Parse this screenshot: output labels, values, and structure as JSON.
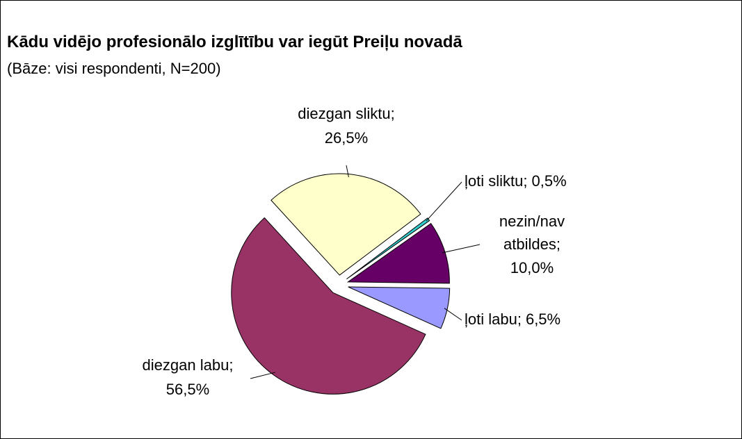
{
  "chart_data": {
    "type": "pie",
    "title": "Kādu vidējo profesionālo izglītību var iegūt Preiļu novadā",
    "subtitle": "(Bāze: visi respondenti, N=200)",
    "categories": [
      "ļoti sliktu;",
      "nezin/nav atbildes;",
      "ļoti labu;",
      "diezgan labu;",
      "diezgan sliktu;"
    ],
    "values": [
      0.5,
      10.0,
      6.5,
      56.5,
      26.5
    ],
    "value_labels": [
      "0,5%",
      "10,0%",
      "6,5%",
      "56,5%",
      "26,5%"
    ],
    "colors": [
      "#33cccc",
      "#660066",
      "#9999ff",
      "#993366",
      "#ffffcc"
    ]
  }
}
